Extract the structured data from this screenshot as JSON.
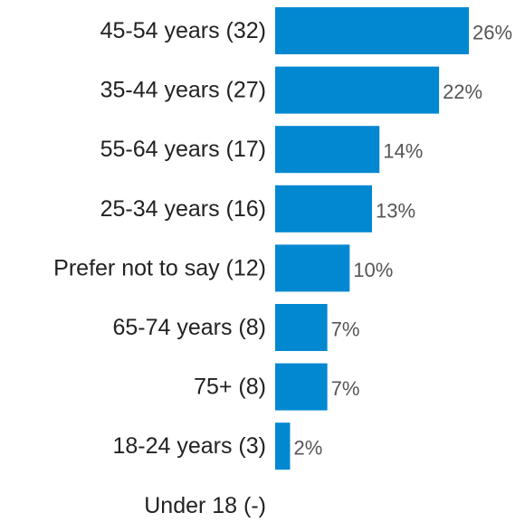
{
  "chart_data": {
    "type": "bar",
    "orientation": "horizontal",
    "categories": [
      "45-54 years (32)",
      "35-44 years (27)",
      "55-64 years (17)",
      "25-34 years (16)",
      "Prefer not to say (12)",
      "65-74 years (8)",
      "75+ (8)",
      "18-24 years (3)",
      "Under 18 (-)"
    ],
    "values": [
      26,
      22,
      14,
      13,
      10,
      7,
      7,
      2,
      0
    ],
    "value_labels": [
      "26%",
      "22%",
      "14%",
      "13%",
      "10%",
      "7%",
      "7%",
      "2%",
      ""
    ],
    "unit": "%",
    "bar_color": "#0288d1",
    "axis_line_color": "#ffffff",
    "grid": false,
    "legend": "none",
    "xlim": [
      0,
      26
    ]
  }
}
